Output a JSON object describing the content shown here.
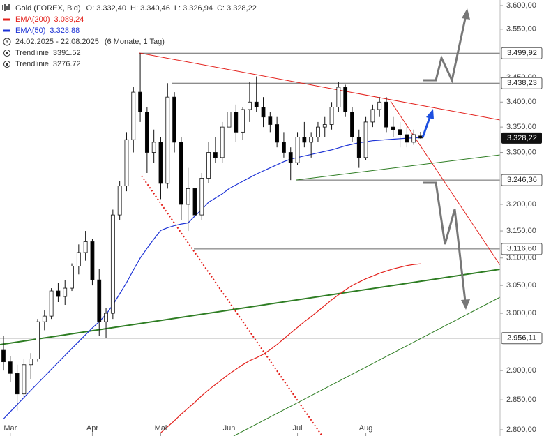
{
  "chart_data": {
    "type": "candlestick",
    "title": "Gold (FOREX, Bid)",
    "ohlc_text": [
      "O: 3.332,40",
      "H: 3.340,46",
      "L: 3.326,94",
      "C: 3.328,22"
    ],
    "period": "24.02.2025 - 22.08.2025",
    "period_note": "(6 Monate, 1 Tag)",
    "trendlines": [
      {
        "name": "Trendlinie",
        "value": 3391.52
      },
      {
        "name": "Trendlinie",
        "value": 3276.72
      }
    ],
    "log_scale": true,
    "ylim": [
      2800,
      3600
    ],
    "yticks": [
      {
        "value": 2800,
        "label": "2.800,00"
      },
      {
        "value": 2850,
        "label": "2.850,00"
      },
      {
        "value": 2900,
        "label": "2.900,00"
      },
      {
        "value": 3000,
        "label": "3.000,00"
      },
      {
        "value": 3050,
        "label": "3.050,00"
      },
      {
        "value": 3100,
        "label": "3.100,00"
      },
      {
        "value": 3150,
        "label": "3.150,00"
      },
      {
        "value": 3200,
        "label": "3.200,00"
      },
      {
        "value": 3300,
        "label": "3.300,00"
      },
      {
        "value": 3350,
        "label": "3.350,00"
      },
      {
        "value": 3400,
        "label": "3.400,00"
      },
      {
        "value": 3450,
        "label": "3.450,00"
      },
      {
        "value": 3550,
        "label": "3.550,00"
      },
      {
        "value": 3600,
        "label": "3.600,00"
      }
    ],
    "price_levels": [
      {
        "value": 3499.92,
        "label": "3.499,92"
      },
      {
        "value": 3438.23,
        "label": "3.438,23"
      },
      {
        "value": 3246.36,
        "label": "3.246,36"
      },
      {
        "value": 3116.6,
        "label": "3.116,60"
      },
      {
        "value": 2956.11,
        "label": "2.956,11"
      }
    ],
    "current_price": {
      "value": 3328.22,
      "label": "3.328,22"
    },
    "up_color": "#ffffff",
    "down_color": "#000000",
    "categories": [
      null,
      "Mar",
      null,
      null,
      null,
      null,
      null,
      null,
      null,
      null,
      null,
      null,
      null,
      "Apr",
      null,
      null,
      null,
      null,
      null,
      null,
      null,
      null,
      null,
      "Mai",
      null,
      null,
      null,
      null,
      null,
      null,
      null,
      null,
      null,
      "Jun",
      null,
      null,
      null,
      null,
      null,
      null,
      null,
      null,
      null,
      "Jul",
      null,
      null,
      null,
      null,
      null,
      null,
      null,
      null,
      null,
      "Aug",
      null,
      null,
      null,
      null,
      null,
      null,
      null,
      null
    ],
    "open": [
      2935,
      2915,
      2895,
      2860,
      2910,
      2920,
      2985,
      2995,
      3040,
      3030,
      3045,
      3085,
      3110,
      3130,
      3060,
      2985,
      3000,
      3180,
      3235,
      3325,
      3420,
      3380,
      3300,
      3320,
      3240,
      3410,
      3320,
      3200,
      3230,
      3180,
      3250,
      3300,
      3290,
      3350,
      3380,
      3340,
      3385,
      3400,
      3390,
      3370,
      3355,
      3320,
      3300,
      3280,
      3330,
      3320,
      3330,
      3350,
      3355,
      3390,
      3430,
      3380,
      3330,
      3290,
      3360,
      3385,
      3400,
      3350,
      3345,
      3335,
      3320,
      3332.4
    ],
    "high": [
      2960,
      2925,
      2910,
      2920,
      2930,
      2990,
      3005,
      3045,
      3055,
      3060,
      3090,
      3125,
      3150,
      3135,
      3080,
      3010,
      3190,
      3245,
      3340,
      3430,
      3499.92,
      3390,
      3345,
      3330,
      3438.23,
      3420,
      3330,
      3270,
      3240,
      3260,
      3320,
      3330,
      3360,
      3400,
      3395,
      3390,
      3440,
      3452,
      3410,
      3380,
      3370,
      3340,
      3310,
      3340,
      3360,
      3340,
      3360,
      3370,
      3400,
      3440,
      3435,
      3390,
      3345,
      3370,
      3395,
      3410,
      3410,
      3370,
      3360,
      3350,
      3345,
      3340.46
    ],
    "low": [
      2900,
      2880,
      2832,
      2855,
      2885,
      2915,
      2970,
      2990,
      3020,
      3015,
      3040,
      3070,
      3095,
      3050,
      2960,
      2956,
      2990,
      3170,
      3225,
      3300,
      3360,
      3260,
      3280,
      3210,
      3230,
      3300,
      3170,
      3150,
      3116.6,
      3170,
      3240,
      3280,
      3280,
      3330,
      3320,
      3325,
      3360,
      3380,
      3350,
      3340,
      3310,
      3290,
      3246.36,
      3275,
      3310,
      3290,
      3320,
      3330,
      3345,
      3380,
      3370,
      3320,
      3270,
      3285,
      3350,
      3370,
      3340,
      3330,
      3310,
      3310,
      3315,
      3326.94
    ],
    "close": [
      2915,
      2895,
      2860,
      2910,
      2920,
      2985,
      2995,
      3040,
      3030,
      3045,
      3085,
      3110,
      3130,
      3060,
      2985,
      3000,
      3180,
      3235,
      3325,
      3420,
      3380,
      3300,
      3320,
      3240,
      3410,
      3320,
      3200,
      3230,
      3180,
      3250,
      3300,
      3290,
      3350,
      3380,
      3340,
      3385,
      3400,
      3390,
      3370,
      3355,
      3320,
      3300,
      3280,
      3330,
      3320,
      3330,
      3350,
      3355,
      3390,
      3430,
      3380,
      3330,
      3290,
      3360,
      3385,
      3400,
      3350,
      3345,
      3335,
      3320,
      3335,
      3328.22
    ],
    "series": [
      {
        "name": "EMA(200)",
        "legend_value": "3.089,24",
        "color": "#e3201b",
        "values": [
          null,
          null,
          null,
          null,
          null,
          null,
          null,
          null,
          null,
          null,
          null,
          null,
          null,
          null,
          null,
          null,
          null,
          null,
          null,
          null,
          null,
          null,
          null,
          2795,
          2805,
          2815,
          2826,
          2836,
          2846,
          2857,
          2867,
          2876,
          2885,
          2894,
          2902,
          2910,
          2917,
          2922,
          2928,
          2936,
          2945,
          2955,
          2965,
          2975,
          2985,
          2994,
          3004,
          3014,
          3024,
          3033,
          3042,
          3050,
          3056,
          3062,
          3067,
          3072,
          3076,
          3080,
          3083,
          3086,
          3088,
          3089.24
        ]
      },
      {
        "name": "EMA(50)",
        "legend_value": "3.328,88",
        "color": "#1d33d6",
        "values": [
          2818,
          2830,
          2842,
          2854,
          2866,
          2878,
          2890,
          2902,
          2914,
          2926,
          2938,
          2950,
          2962,
          2974,
          2985,
          2998,
          3015,
          3035,
          3055,
          3078,
          3100,
          3118,
          3135,
          3151,
          3156,
          3160,
          3163,
          3165,
          3178,
          3190,
          3204,
          3212,
          3220,
          3230,
          3237,
          3244,
          3251,
          3258,
          3264,
          3270,
          3276,
          3282,
          3287,
          3290,
          3293,
          3296,
          3299,
          3302,
          3305,
          3309,
          3313,
          3316,
          3319,
          3321,
          3323,
          3324,
          3325,
          3326,
          3327,
          3328,
          3328.5,
          3328.88
        ]
      }
    ]
  }
}
